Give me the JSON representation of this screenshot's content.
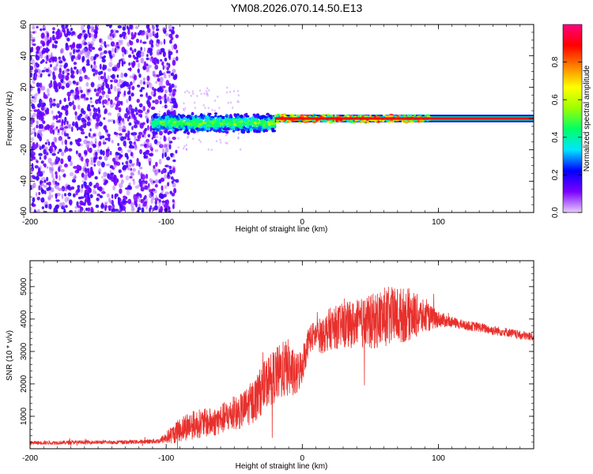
{
  "figure_title": "YM08.2026.070.14.50.E13",
  "chart_data": [
    {
      "type": "heatmap",
      "title": "YM08.2026.070.14.50.E13",
      "xlabel": "Height of straight line (km)",
      "ylabel": "Frequency (Hz)",
      "xlim": [
        -200,
        170
      ],
      "ylim": [
        -60,
        60
      ],
      "xticks": [
        -200,
        -100,
        0,
        100
      ],
      "yticks": [
        -60,
        -40,
        -20,
        0,
        20,
        40,
        60
      ],
      "colorbar": {
        "label": "Normalized spectral amplitude",
        "range": [
          0,
          1
        ],
        "ticks": [
          "0.0",
          "0.2",
          "0.4",
          "0.6",
          "0.8"
        ],
        "colormap": [
          "#e6ccff",
          "#7a00ff",
          "#0000ff",
          "#00e5ff",
          "#00ff66",
          "#9cff00",
          "#ffff00",
          "#ff8000",
          "#ff0000",
          "#ff0080"
        ]
      },
      "regions": [
        {
          "name": "noise",
          "x_range": [
            -200,
            -100
          ],
          "freq_range": [
            -60,
            60
          ],
          "amplitude": 0.1
        },
        {
          "name": "onset",
          "x_range": [
            -110,
            -20
          ],
          "center_freq": [
            -2,
            -4
          ],
          "bandwidth_hz": 6,
          "amplitude": 0.45
        },
        {
          "name": "tone",
          "x_range": [
            -20,
            170
          ],
          "center_freq": [
            0,
            0
          ],
          "bandwidth_hz": 2,
          "amplitude": 0.9
        }
      ]
    },
    {
      "type": "line",
      "xlabel": "Height of straight line (km)",
      "ylabel": "SNR (10 * v/v)",
      "xlim": [
        -200,
        170
      ],
      "ylim": [
        0,
        5800
      ],
      "xticks": [
        -200,
        -100,
        0,
        100
      ],
      "yticks": [
        1000,
        2000,
        3000,
        4000,
        5000
      ],
      "color": "#e8302c",
      "series": [
        {
          "name": "SNR",
          "x": [
            -200,
            -180,
            -160,
            -140,
            -120,
            -105,
            -95,
            -85,
            -75,
            -65,
            -55,
            -45,
            -35,
            -25,
            -15,
            -10,
            -5,
            0,
            5,
            10,
            15,
            20,
            30,
            40,
            50,
            60,
            70,
            80,
            90,
            100,
            110,
            120,
            130,
            140,
            150,
            160,
            170
          ],
          "y": [
            180,
            190,
            200,
            200,
            210,
            240,
            450,
            700,
            780,
            820,
            1000,
            1150,
            1500,
            2100,
            2400,
            2500,
            2200,
            2600,
            3400,
            3500,
            3500,
            3700,
            3800,
            3850,
            3900,
            4050,
            4100,
            4150,
            4050,
            4000,
            3900,
            3800,
            3750,
            3650,
            3600,
            3500,
            3450
          ],
          "jitter": [
            60,
            60,
            60,
            60,
            60,
            80,
            300,
            450,
            450,
            450,
            500,
            550,
            700,
            800,
            900,
            900,
            700,
            600,
            450,
            450,
            600,
            650,
            700,
            750,
            850,
            950,
            900,
            800,
            500,
            250,
            170,
            150,
            150,
            150,
            140,
            140,
            140
          ]
        }
      ]
    }
  ]
}
